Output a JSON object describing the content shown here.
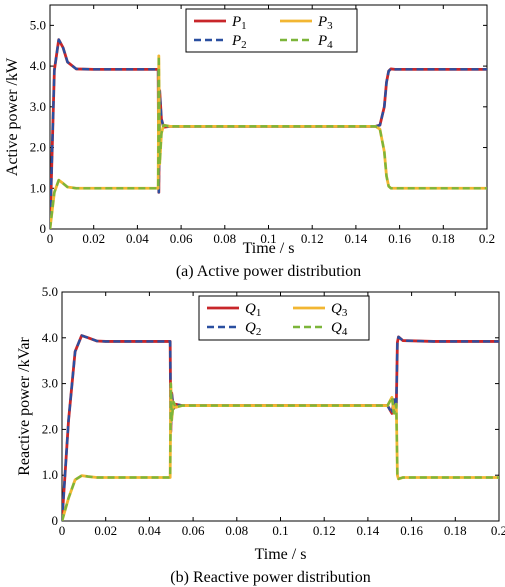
{
  "chart_data": [
    {
      "type": "line",
      "caption": "(a) Active power distribution",
      "xlabel": "Time  / s",
      "ylabel": "Active power /kW",
      "xlim": [
        0,
        0.2
      ],
      "ylim": [
        0,
        5.5
      ],
      "xticks": [
        "0",
        "0.02",
        "0.04",
        "0.06",
        "0.08",
        "0.1",
        "0.12",
        "0.14",
        "0.16",
        "0.18",
        "0.2"
      ],
      "yticks": [
        "0",
        "1.0",
        "2.0",
        "3.0",
        "4.0",
        "5.0"
      ],
      "legend_position": "top-center",
      "series": [
        {
          "name": "P",
          "sub": "1",
          "color": "#c8262a",
          "dashed": false,
          "x": [
            0,
            0.002,
            0.004,
            0.006,
            0.008,
            0.012,
            0.02,
            0.03,
            0.049,
            0.0495,
            0.0498,
            0.0502,
            0.051,
            0.052,
            0.055,
            0.07,
            0.1,
            0.13,
            0.149,
            0.151,
            0.153,
            0.154,
            0.155,
            0.156,
            0.158,
            0.17,
            0.19,
            0.2
          ],
          "y": [
            0,
            3.9,
            4.65,
            4.45,
            4.1,
            3.93,
            3.92,
            3.92,
            3.92,
            3.92,
            0.9,
            3.4,
            2.7,
            2.5,
            2.52,
            2.52,
            2.52,
            2.52,
            2.52,
            2.55,
            3.0,
            3.6,
            3.88,
            3.93,
            3.92,
            3.92,
            3.92,
            3.92
          ]
        },
        {
          "name": "P",
          "sub": "2",
          "color": "#2a4fa0",
          "dashed": true,
          "x": [
            0,
            0.002,
            0.004,
            0.006,
            0.008,
            0.012,
            0.02,
            0.03,
            0.049,
            0.0495,
            0.0498,
            0.0502,
            0.051,
            0.052,
            0.055,
            0.07,
            0.1,
            0.13,
            0.149,
            0.151,
            0.153,
            0.154,
            0.155,
            0.156,
            0.158,
            0.17,
            0.19,
            0.2
          ],
          "y": [
            0,
            3.9,
            4.65,
            4.45,
            4.1,
            3.93,
            3.92,
            3.92,
            3.92,
            3.92,
            0.9,
            3.4,
            2.7,
            2.5,
            2.52,
            2.52,
            2.52,
            2.52,
            2.52,
            2.55,
            3.0,
            3.6,
            3.88,
            3.93,
            3.92,
            3.92,
            3.92,
            3.92
          ]
        },
        {
          "name": "P",
          "sub": "3",
          "color": "#f2b632",
          "dashed": false,
          "x": [
            0,
            0.002,
            0.004,
            0.006,
            0.008,
            0.012,
            0.02,
            0.03,
            0.049,
            0.0495,
            0.0498,
            0.0502,
            0.051,
            0.052,
            0.055,
            0.07,
            0.1,
            0.13,
            0.149,
            0.151,
            0.153,
            0.154,
            0.155,
            0.156,
            0.158,
            0.17,
            0.19,
            0.2
          ],
          "y": [
            0,
            0.9,
            1.2,
            1.12,
            1.03,
            1.0,
            1.0,
            1.0,
            1.0,
            1.0,
            4.25,
            1.6,
            2.35,
            2.55,
            2.52,
            2.52,
            2.52,
            2.52,
            2.52,
            2.45,
            1.9,
            1.3,
            1.05,
            1.0,
            1.0,
            1.0,
            1.0,
            1.0
          ]
        },
        {
          "name": "P",
          "sub": "4",
          "color": "#7cb53a",
          "dashed": true,
          "x": [
            0,
            0.002,
            0.004,
            0.006,
            0.008,
            0.012,
            0.02,
            0.03,
            0.049,
            0.0495,
            0.0498,
            0.0502,
            0.051,
            0.052,
            0.055,
            0.07,
            0.1,
            0.13,
            0.149,
            0.151,
            0.153,
            0.154,
            0.155,
            0.156,
            0.158,
            0.17,
            0.19,
            0.2
          ],
          "y": [
            0,
            0.9,
            1.2,
            1.12,
            1.03,
            1.0,
            1.0,
            1.0,
            1.0,
            1.0,
            4.25,
            1.6,
            2.35,
            2.55,
            2.52,
            2.52,
            2.52,
            2.52,
            2.52,
            2.45,
            1.9,
            1.3,
            1.05,
            1.0,
            1.0,
            1.0,
            1.0,
            1.0
          ]
        }
      ]
    },
    {
      "type": "line",
      "caption": "(b) Reactive power distribution",
      "xlabel": "Time  / s",
      "ylabel": "Reactive power /kVar",
      "xlim": [
        0,
        0.2
      ],
      "ylim": [
        0,
        5.0
      ],
      "xticks": [
        "0",
        "0.02",
        "0.04",
        "0.06",
        "0.08",
        "0.1",
        "0.12",
        "0.14",
        "0.16",
        "0.18",
        "0.2"
      ],
      "yticks": [
        "0",
        "1.0",
        "2.0",
        "3.0",
        "4.0",
        "5.0"
      ],
      "legend_position": "top-center",
      "series": [
        {
          "name": "Q",
          "sub": "1",
          "color": "#c8262a",
          "dashed": false,
          "x": [
            0,
            0.003,
            0.006,
            0.009,
            0.012,
            0.016,
            0.02,
            0.03,
            0.049,
            0.0495,
            0.0498,
            0.0502,
            0.051,
            0.052,
            0.055,
            0.07,
            0.1,
            0.13,
            0.149,
            0.151,
            0.152,
            0.153,
            0.1535,
            0.154,
            0.156,
            0.17,
            0.19,
            0.2
          ],
          "y": [
            0,
            2.2,
            3.7,
            4.05,
            4.0,
            3.93,
            3.92,
            3.92,
            3.92,
            3.92,
            1.95,
            2.8,
            2.45,
            2.55,
            2.52,
            2.52,
            2.52,
            2.52,
            2.52,
            2.35,
            2.65,
            2.5,
            3.9,
            4.02,
            3.94,
            3.92,
            3.92,
            3.92
          ]
        },
        {
          "name": "Q",
          "sub": "2",
          "color": "#2a4fa0",
          "dashed": true,
          "x": [
            0,
            0.003,
            0.006,
            0.009,
            0.012,
            0.016,
            0.02,
            0.03,
            0.049,
            0.0495,
            0.0498,
            0.0502,
            0.051,
            0.052,
            0.055,
            0.07,
            0.1,
            0.13,
            0.149,
            0.151,
            0.152,
            0.153,
            0.1535,
            0.154,
            0.156,
            0.17,
            0.19,
            0.2
          ],
          "y": [
            0,
            2.2,
            3.7,
            4.05,
            4.0,
            3.93,
            3.92,
            3.92,
            3.92,
            3.92,
            1.95,
            2.8,
            2.45,
            2.55,
            2.52,
            2.52,
            2.52,
            2.52,
            2.52,
            2.35,
            2.65,
            2.5,
            3.9,
            4.02,
            3.94,
            3.92,
            3.92,
            3.92
          ]
        },
        {
          "name": "Q",
          "sub": "3",
          "color": "#f2b632",
          "dashed": false,
          "x": [
            0,
            0.003,
            0.006,
            0.009,
            0.012,
            0.016,
            0.02,
            0.03,
            0.049,
            0.0495,
            0.0498,
            0.0502,
            0.051,
            0.052,
            0.055,
            0.07,
            0.1,
            0.13,
            0.149,
            0.151,
            0.152,
            0.153,
            0.1535,
            0.154,
            0.156,
            0.17,
            0.19,
            0.2
          ],
          "y": [
            0,
            0.5,
            0.9,
            0.99,
            0.97,
            0.95,
            0.95,
            0.95,
            0.95,
            0.95,
            3.0,
            2.2,
            2.6,
            2.48,
            2.52,
            2.52,
            2.52,
            2.52,
            2.52,
            2.7,
            2.35,
            2.55,
            1.0,
            0.92,
            0.95,
            0.95,
            0.95,
            0.95
          ]
        },
        {
          "name": "Q",
          "sub": "4",
          "color": "#7cb53a",
          "dashed": true,
          "x": [
            0,
            0.003,
            0.006,
            0.009,
            0.012,
            0.016,
            0.02,
            0.03,
            0.049,
            0.0495,
            0.0498,
            0.0502,
            0.051,
            0.052,
            0.055,
            0.07,
            0.1,
            0.13,
            0.149,
            0.151,
            0.152,
            0.153,
            0.1535,
            0.154,
            0.156,
            0.17,
            0.19,
            0.2
          ],
          "y": [
            0,
            0.5,
            0.9,
            0.99,
            0.97,
            0.95,
            0.95,
            0.95,
            0.95,
            0.95,
            3.0,
            2.2,
            2.6,
            2.48,
            2.52,
            2.52,
            2.52,
            2.52,
            2.52,
            2.7,
            2.35,
            2.55,
            1.0,
            0.92,
            0.95,
            0.95,
            0.95,
            0.95
          ]
        }
      ]
    }
  ]
}
